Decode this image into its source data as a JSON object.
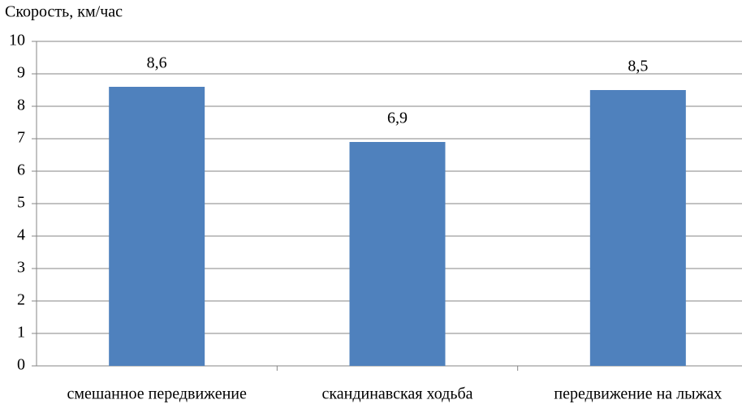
{
  "chart_data": {
    "type": "bar",
    "y_label": "Скорость, км/час",
    "categories": [
      "смешанное передвижение",
      "скандинавская ходьба",
      "передвижение на лыжах"
    ],
    "values": [
      8.6,
      6.9,
      8.5
    ],
    "value_labels": [
      "8,6",
      "6,9",
      "8,5"
    ],
    "color": "#4f81bd",
    "ylim": [
      0,
      10
    ],
    "yticks": [
      0,
      1,
      2,
      3,
      4,
      5,
      6,
      7,
      8,
      9,
      10
    ],
    "grid": true
  }
}
